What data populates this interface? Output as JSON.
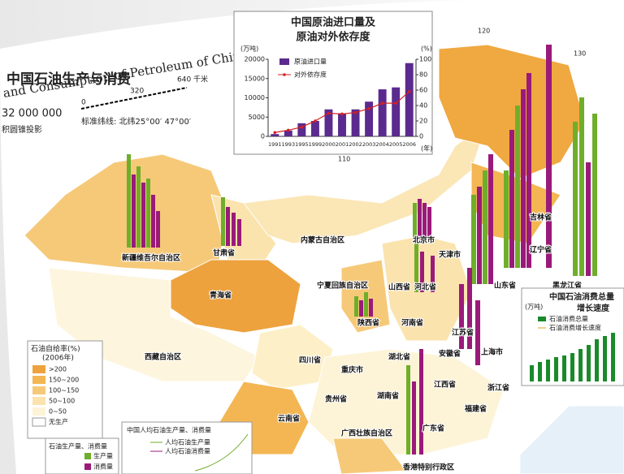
{
  "map": {
    "title": "中国石油生产与消费",
    "subtitle_en": "and Consumption of Petroleum of China",
    "scale": "32 000 000",
    "scale_bar": [
      "0",
      "320",
      "640 千米"
    ],
    "parallels": "标准纬线: 北纬25°00′ 47°00′",
    "projection": "积圆锥投影",
    "longitudes": [
      "110",
      "120",
      "130"
    ],
    "provinces": [
      "新疆维吾尔自治区",
      "甘肃省",
      "内蒙古自治区",
      "青海省",
      "宁夏回族自治区",
      "西藏自治区",
      "四川省",
      "陕西省",
      "山西省",
      "河北省",
      "北京市",
      "天津市",
      "吉林省",
      "辽宁省",
      "黑龙江省",
      "山东省",
      "河南省",
      "湖北省",
      "江苏省",
      "安徽省",
      "上海市",
      "浙江省",
      "湖南省",
      "江西省",
      "贵州省",
      "重庆市",
      "云南省",
      "广西壮族自治区",
      "广东省",
      "福建省",
      "香港特别行政区"
    ],
    "legend": {
      "title": "石油自给率(%)",
      "year": "(2006年)",
      "items": [
        ">200",
        "150~200",
        "100~150",
        "50~100",
        "0~50",
        "无生产"
      ]
    },
    "production_legend": {
      "title": "石油生产量、消费量",
      "items": [
        "生产量",
        "消费量"
      ]
    },
    "per_capita_inset": {
      "title": "中国人均石油生产量、消费量",
      "items": [
        "人均石油生产量",
        "人均石油消费量"
      ]
    },
    "consumption_inset": {
      "title": [
        "中国石油消费总量",
        "增长速度"
      ],
      "unit": "(万吨)",
      "items": [
        "石油消费总量",
        "石油消费增长速度"
      ]
    }
  },
  "chart_data": {
    "type": "bar",
    "title": [
      "中国原油进口量及",
      "原油对外依存度"
    ],
    "y_label": "(万吨)",
    "y2_label": "(%)",
    "x_label": "(年)",
    "categories": [
      "1991",
      "1993",
      "1995",
      "1999",
      "2000",
      "2001",
      "2002",
      "2003",
      "2004",
      "2005",
      "2006"
    ],
    "series": [
      {
        "name": "原油进口量",
        "color": "#5b2a8e",
        "values": [
          600,
          1500,
          3400,
          4000,
          7000,
          6000,
          7000,
          9000,
          12200,
          12700,
          19000
        ]
      },
      {
        "name": "对外依存度",
        "color": "#d42020",
        "axis": "y2",
        "values": [
          5,
          8,
          12,
          20,
          30,
          29,
          31,
          36,
          43,
          43,
          58
        ]
      }
    ],
    "ylim": [
      0,
      20000
    ],
    "yticks": [
      0,
      5000,
      10000,
      15000,
      20000
    ],
    "y2lim": [
      0,
      100
    ],
    "y2ticks": [
      0,
      20,
      40,
      60,
      80,
      100
    ]
  }
}
